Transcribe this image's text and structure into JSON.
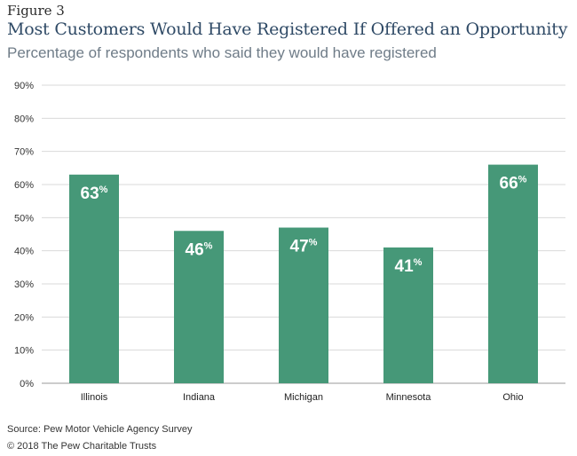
{
  "figure_label": "Figure 3",
  "source": "Source: Pew Motor Vehicle Agency Survey",
  "copyright": "© 2018 The Pew Charitable Trusts",
  "chart_data": {
    "type": "bar",
    "title": "Most Customers Would Have Registered If Offered an Opportunity",
    "subtitle": "Percentage of respondents who said they would have registered",
    "xlabel": "",
    "ylabel": "",
    "categories": [
      "Illinois",
      "Indiana",
      "Michigan",
      "Minnesota",
      "Ohio"
    ],
    "values": [
      63,
      46,
      47,
      41,
      66
    ],
    "value_labels": [
      "63",
      "46",
      "47",
      "41",
      "66"
    ],
    "value_unit": "%",
    "ylim": [
      0,
      90
    ],
    "yticks": [
      0,
      10,
      20,
      30,
      40,
      50,
      60,
      70,
      80,
      90
    ],
    "ytick_labels": [
      "0%",
      "10%",
      "20%",
      "30%",
      "40%",
      "50%",
      "60%",
      "70%",
      "80%",
      "90%"
    ],
    "grid": true,
    "legend": "none",
    "bar_color": "#469878",
    "grid_color": "#d9d9d9"
  }
}
